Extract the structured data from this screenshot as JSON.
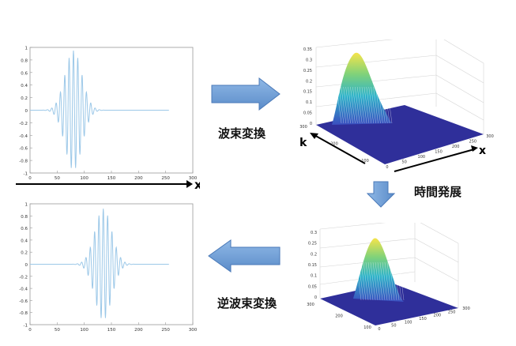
{
  "colors": {
    "signal": "#9cc8e8",
    "plane": "#2f2f9a",
    "arrow_fill": "#6f9fd6",
    "arrow_stroke": "#4a79b8"
  },
  "labels": {
    "transform": "波束変換",
    "time_evolution": "時間発展",
    "inverse_transform": "逆波束変換",
    "x_axis": "x",
    "k_axis": "k"
  },
  "plots": {
    "top_wave": {
      "yticks": [
        "1",
        "0.8",
        "0.6",
        "0.4",
        "0.2",
        "0",
        "-0.2",
        "-0.4",
        "-0.6",
        "-0.8",
        "-1"
      ],
      "xticks": [
        "0",
        "50",
        "100",
        "150",
        "200",
        "250",
        "300"
      ]
    },
    "bottom_wave": {
      "yticks": [
        "1",
        "0.8",
        "0.6",
        "0.4",
        "0.2",
        "0",
        "-0.2",
        "-0.4",
        "-0.6",
        "-0.8",
        "-1"
      ],
      "xticks": [
        "0",
        "50",
        "100",
        "150",
        "200",
        "250",
        "300"
      ]
    },
    "surface_top": {
      "zticks": [
        "0.35",
        "0.3",
        "0.25",
        "0.2",
        "0.15",
        "0.1",
        "0.05",
        "0"
      ],
      "x_ticks": [
        "0",
        "50",
        "100",
        "150",
        "200",
        "250",
        "300"
      ],
      "k_ticks": [
        "300",
        "200",
        "100"
      ]
    },
    "surface_bottom": {
      "zticks": [
        "0.3",
        "0.25",
        "0.2",
        "0.15",
        "0.1",
        "0.05",
        "0"
      ],
      "x_ticks": [
        "0",
        "50",
        "100",
        "150",
        "200",
        "250",
        "300"
      ],
      "k_ticks": [
        "300",
        "200",
        "100"
      ]
    }
  },
  "chart_data": [
    {
      "type": "line",
      "title": "",
      "xlabel": "x",
      "ylabel": "",
      "xlim": [
        0,
        300
      ],
      "ylim": [
        -1,
        1
      ],
      "series": [
        {
          "envelope_center": 80,
          "envelope_width": 22,
          "wavelength": 8,
          "amplitude": 0.95,
          "x_range": [
            0,
            256
          ]
        }
      ]
    },
    {
      "type": "line",
      "title": "",
      "xlabel": "",
      "ylabel": "",
      "xlim": [
        0,
        300
      ],
      "ylim": [
        -1,
        1
      ],
      "series": [
        {
          "envelope_center": 135,
          "envelope_width": 22,
          "wavelength": 8,
          "amplitude": 0.92,
          "x_range": [
            0,
            256
          ]
        }
      ]
    }
  ]
}
